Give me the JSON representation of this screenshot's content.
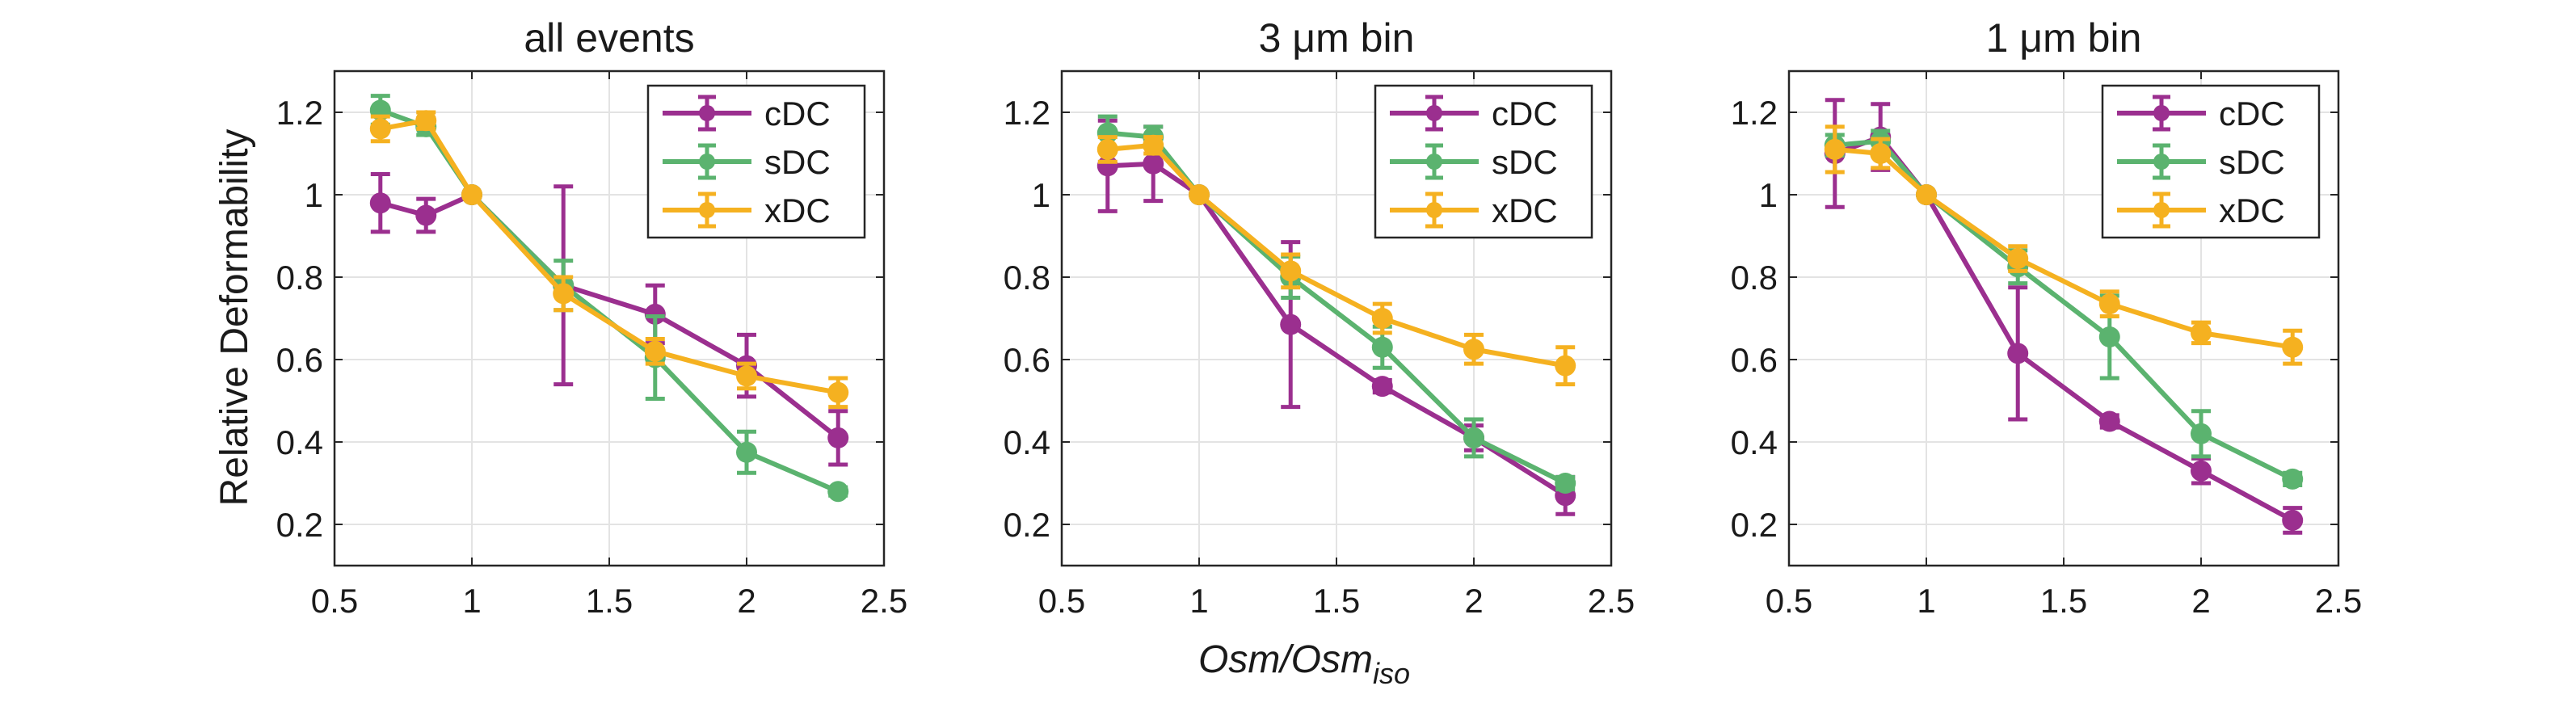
{
  "figure": {
    "ylabel": "Relative Deformability",
    "xlabel_main": "Osm/Osm",
    "xlabel_sub": "iso"
  },
  "colors": {
    "cDC": "#9B2F8F",
    "sDC": "#5BB36F",
    "xDC": "#F5B120"
  },
  "chart_data": [
    {
      "type": "line",
      "title": "all events",
      "xlim": [
        0.5,
        2.5
      ],
      "ylim": [
        0.1,
        1.3
      ],
      "xticks": [
        "0.5",
        "1",
        "1.5",
        "2",
        "2.5"
      ],
      "yticks": [
        "0.2",
        "0.4",
        "0.6",
        "0.8",
        "1",
        "1.2"
      ],
      "grid": true,
      "legend_position": "top-right",
      "x": [
        0.667,
        0.833,
        1.0,
        1.333,
        1.667,
        2.0,
        2.333
      ],
      "series": [
        {
          "name": "cDC",
          "values": [
            0.98,
            0.95,
            1.0,
            0.78,
            0.71,
            0.585,
            0.41
          ],
          "errors": [
            0.07,
            0.04,
            0.0,
            0.24,
            0.07,
            0.075,
            0.065
          ]
        },
        {
          "name": "sDC",
          "values": [
            1.205,
            1.165,
            1.0,
            0.78,
            0.605,
            0.375,
            0.28
          ],
          "errors": [
            0.035,
            0.02,
            0.0,
            0.06,
            0.1,
            0.05,
            0.01
          ]
        },
        {
          "name": "xDC",
          "values": [
            1.16,
            1.18,
            1.0,
            0.76,
            0.62,
            0.56,
            0.52
          ],
          "errors": [
            0.03,
            0.02,
            0.0,
            0.04,
            0.03,
            0.03,
            0.035
          ]
        }
      ]
    },
    {
      "type": "line",
      "title": "3 μm bin",
      "xlim": [
        0.5,
        2.5
      ],
      "ylim": [
        0.1,
        1.3
      ],
      "xticks": [
        "0.5",
        "1",
        "1.5",
        "2",
        "2.5"
      ],
      "yticks": [
        "0.2",
        "0.4",
        "0.6",
        "0.8",
        "1",
        "1.2"
      ],
      "grid": true,
      "legend_position": "top-right",
      "x": [
        0.667,
        0.833,
        1.0,
        1.333,
        1.667,
        2.0,
        2.333
      ],
      "series": [
        {
          "name": "cDC",
          "values": [
            1.07,
            1.075,
            1.0,
            0.685,
            0.535,
            0.41,
            0.27
          ],
          "errors": [
            0.11,
            0.09,
            0.0,
            0.2,
            0.015,
            0.03,
            0.045
          ]
        },
        {
          "name": "sDC",
          "values": [
            1.15,
            1.14,
            1.0,
            0.8,
            0.63,
            0.41,
            0.3
          ],
          "errors": [
            0.04,
            0.025,
            0.0,
            0.05,
            0.05,
            0.045,
            0.015
          ]
        },
        {
          "name": "xDC",
          "values": [
            1.11,
            1.12,
            1.0,
            0.815,
            0.7,
            0.625,
            0.585
          ],
          "errors": [
            0.03,
            0.02,
            0.0,
            0.04,
            0.035,
            0.035,
            0.045
          ]
        }
      ]
    },
    {
      "type": "line",
      "title": "1 μm bin",
      "xlim": [
        0.5,
        2.5
      ],
      "ylim": [
        0.1,
        1.3
      ],
      "xticks": [
        "0.5",
        "1",
        "1.5",
        "2",
        "2.5"
      ],
      "yticks": [
        "0.2",
        "0.4",
        "0.6",
        "0.8",
        "1",
        "1.2"
      ],
      "grid": true,
      "legend_position": "top-right",
      "x": [
        0.667,
        0.833,
        1.0,
        1.333,
        1.667,
        2.0,
        2.333
      ],
      "series": [
        {
          "name": "cDC",
          "values": [
            1.1,
            1.14,
            1.0,
            0.615,
            0.45,
            0.33,
            0.21
          ],
          "errors": [
            0.13,
            0.08,
            0.0,
            0.16,
            0.015,
            0.03,
            0.03
          ]
        },
        {
          "name": "sDC",
          "values": [
            1.12,
            1.13,
            1.0,
            0.825,
            0.655,
            0.42,
            0.31
          ],
          "errors": [
            0.025,
            0.025,
            0.0,
            0.04,
            0.1,
            0.055,
            0.015
          ]
        },
        {
          "name": "xDC",
          "values": [
            1.11,
            1.1,
            1.0,
            0.845,
            0.735,
            0.665,
            0.63
          ],
          "errors": [
            0.055,
            0.035,
            0.0,
            0.03,
            0.03,
            0.025,
            0.04
          ]
        }
      ]
    }
  ]
}
